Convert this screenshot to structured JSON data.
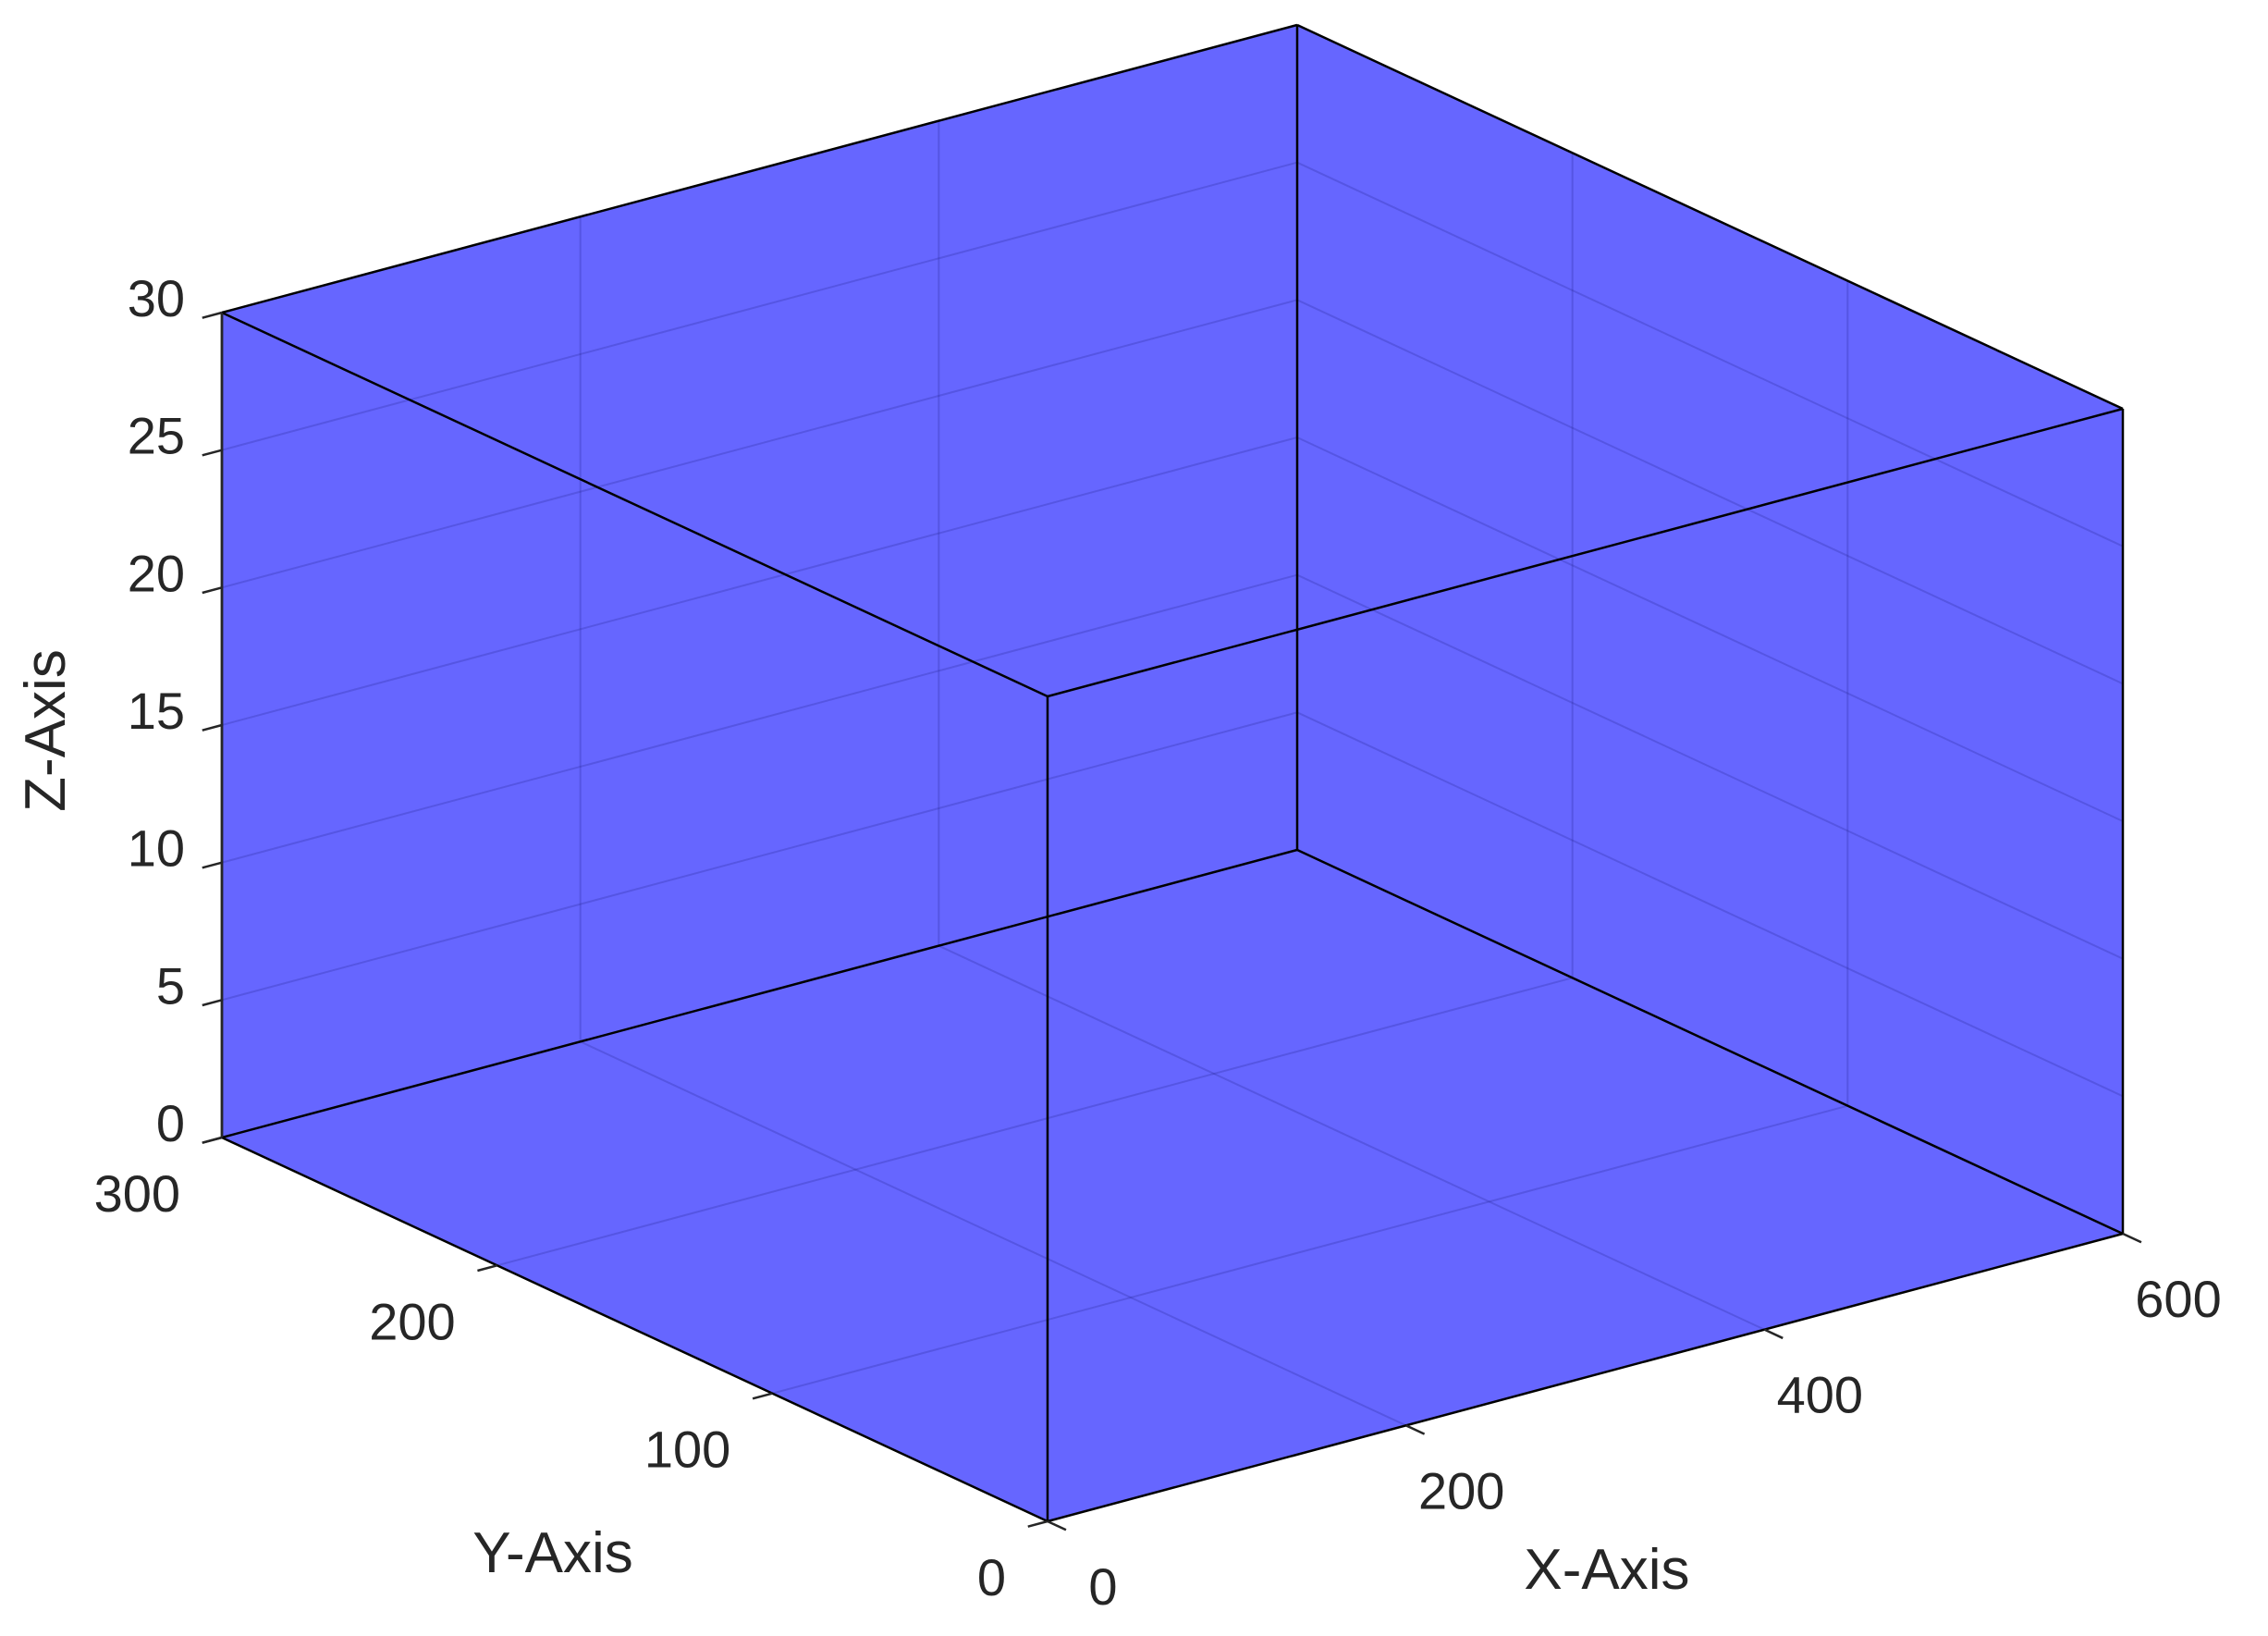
{
  "chart_data": {
    "type": "3d-box",
    "title": "",
    "xlabel": "X-Axis",
    "ylabel": "Y-Axis",
    "zlabel": "Z-Axis",
    "xlim": [
      0,
      600
    ],
    "ylim": [
      0,
      300
    ],
    "zlim": [
      0,
      30
    ],
    "x_ticks": [
      0,
      200,
      400,
      600
    ],
    "y_ticks": [
      0,
      100,
      200,
      300
    ],
    "z_ticks": [
      0,
      5,
      10,
      15,
      20,
      25,
      30
    ],
    "x_tick_labels": [
      "0",
      "200",
      "400",
      "600"
    ],
    "y_tick_labels": [
      "0",
      "100",
      "200",
      "300"
    ],
    "z_tick_labels": [
      "0",
      "5",
      "10",
      "15",
      "20",
      "25",
      "30"
    ],
    "grid": true,
    "box": {
      "x": [
        0,
        600
      ],
      "y": [
        0,
        300
      ],
      "z": [
        0,
        30
      ],
      "face_color": "#6666ff",
      "edge_color": "#000000"
    }
  }
}
